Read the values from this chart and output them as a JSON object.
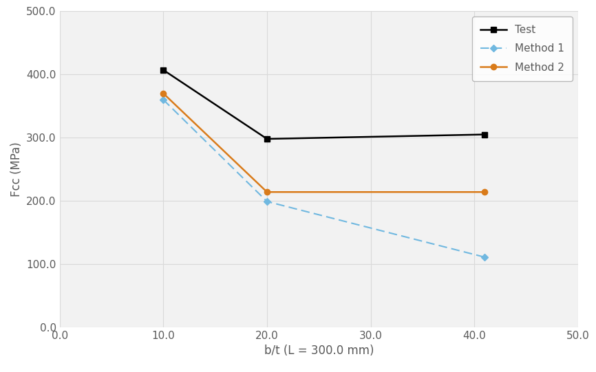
{
  "title": "",
  "xlabel": "b/t (L = 300.0 mm)",
  "ylabel": "Fcc (MPa)",
  "xlim": [
    0.0,
    50.0
  ],
  "ylim": [
    0.0,
    500.0
  ],
  "xticks": [
    0.0,
    10.0,
    20.0,
    30.0,
    40.0,
    50.0
  ],
  "yticks": [
    0.0,
    100.0,
    200.0,
    300.0,
    400.0,
    500.0
  ],
  "series": [
    {
      "label": "Test",
      "x": [
        10.0,
        20.0,
        41.0
      ],
      "y": [
        407.0,
        298.0,
        305.0
      ],
      "color": "#000000",
      "linestyle": "-",
      "marker": "s",
      "markersize": 6,
      "linewidth": 1.8,
      "dashes": []
    },
    {
      "label": "Method 1",
      "x": [
        10.0,
        20.0,
        41.0
      ],
      "y": [
        360.0,
        199.0,
        111.0
      ],
      "color": "#70B8E0",
      "linestyle": "--",
      "marker": "D",
      "markersize": 5,
      "linewidth": 1.5,
      "dashes": [
        6,
        3
      ]
    },
    {
      "label": "Method 2",
      "x": [
        10.0,
        20.0,
        41.0
      ],
      "y": [
        370.0,
        214.0,
        214.0
      ],
      "color": "#D97B1A",
      "linestyle": "-",
      "marker": "o",
      "markersize": 6,
      "linewidth": 1.8,
      "dashes": []
    }
  ],
  "legend_loc": "upper right",
  "grid": true,
  "grid_color": "#D9D9D9",
  "plot_bg_color": "#F2F2F2",
  "figure_bg": "#FFFFFF",
  "label_color": "#595959",
  "tick_color": "#595959",
  "tick_fontsize": 11,
  "label_fontsize": 12
}
